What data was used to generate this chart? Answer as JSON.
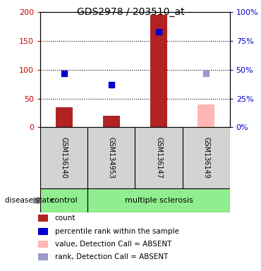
{
  "title": "GDS2978 / 203510_at",
  "samples": [
    "GSM136140",
    "GSM134953",
    "GSM136147",
    "GSM136149"
  ],
  "count_values": [
    35,
    20,
    196,
    40
  ],
  "rank_pct_values": [
    47,
    37,
    83,
    47
  ],
  "absent_flags": [
    false,
    false,
    false,
    true
  ],
  "bar_color_present": "#b22222",
  "bar_color_absent": "#ffb6b6",
  "rank_color_present": "#0000cd",
  "rank_color_absent": "#9999cc",
  "ylim_left": [
    0,
    200
  ],
  "ylim_right": [
    0,
    100
  ],
  "yticks_left": [
    0,
    50,
    100,
    150,
    200
  ],
  "ytick_labels_left": [
    "0",
    "50",
    "100",
    "150",
    "200"
  ],
  "yticks_right_pct": [
    0,
    25,
    50,
    75,
    100
  ],
  "ytick_labels_right": [
    "0%",
    "25%",
    "50%",
    "75%",
    "100%"
  ],
  "bar_width": 0.35,
  "square_size": 40,
  "plot_bg_color": "#d3d3d3",
  "control_color": "#90ee90",
  "ms_color": "#90ee90",
  "legend_items": [
    {
      "label": "count",
      "color": "#b22222"
    },
    {
      "label": "percentile rank within the sample",
      "color": "#0000cd"
    },
    {
      "label": "value, Detection Call = ABSENT",
      "color": "#ffb6b6"
    },
    {
      "label": "rank, Detection Call = ABSENT",
      "color": "#9999cc"
    }
  ]
}
